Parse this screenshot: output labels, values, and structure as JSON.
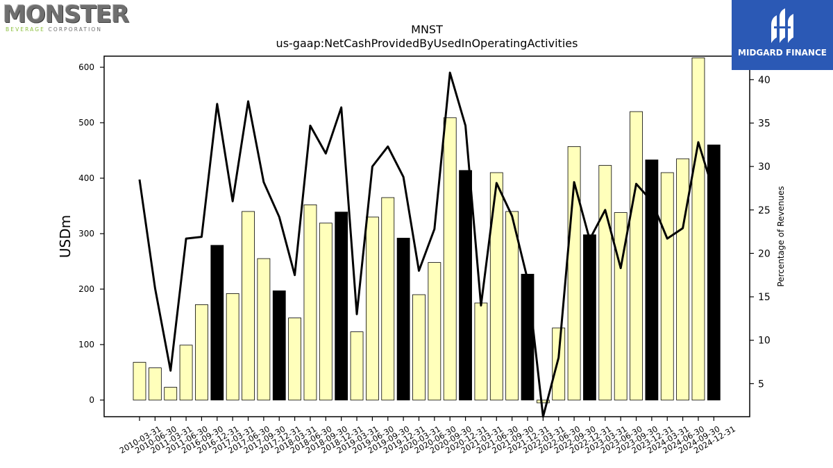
{
  "logo_left": {
    "name": "MONSTER",
    "tagline_a": "BEVERAGE",
    "tagline_b": "CORPORATION"
  },
  "logo_right": {
    "name": "MIDGARD FINANCE",
    "bg_color": "#2b59b5"
  },
  "chart_data": {
    "type": "bar",
    "title": "MNST",
    "subtitle": "us-gaap:NetCashProvidedByUsedInOperatingActivities",
    "ylabel": "USDm",
    "y2label": "Percentage of Revenues",
    "ylim": [
      -30,
      620
    ],
    "y2lim": [
      1.2,
      42.7
    ],
    "yticks": [
      0,
      100,
      200,
      300,
      400,
      500,
      600
    ],
    "y2ticks": [
      5,
      10,
      15,
      20,
      25,
      30,
      35,
      40
    ],
    "grid": false,
    "categories": [
      "2010-03-31",
      "2010-06-30",
      "2011-03-31",
      "2011-06-30",
      "2016-09-30",
      "2016-12-31",
      "2017-03-31",
      "2017-06-30",
      "2017-09-30",
      "2017-12-31",
      "2018-03-31",
      "2018-06-30",
      "2018-09-30",
      "2018-12-31",
      "2019-03-31",
      "2019-06-30",
      "2019-09-30",
      "2019-12-31",
      "2020-03-31",
      "2020-06-30",
      "2020-09-30",
      "2020-12-31",
      "2021-03-31",
      "2021-06-30",
      "2021-09-30",
      "2021-12-31",
      "2022-03-31",
      "2022-06-30",
      "2022-09-30",
      "2022-12-31",
      "2023-03-31",
      "2023-06-30",
      "2023-09-30",
      "2023-12-31",
      "2024-03-31",
      "2024-06-30",
      "2024-09-30",
      "2024-12-31"
    ],
    "values": [
      68,
      58,
      23,
      99,
      172,
      279,
      192,
      340,
      255,
      197,
      148,
      352,
      319,
      339,
      123,
      330,
      365,
      292,
      190,
      248,
      509,
      414,
      175,
      410,
      340,
      227,
      -5,
      130,
      457,
      298,
      423,
      338,
      520,
      433,
      410,
      435,
      617,
      460
    ],
    "highlight": [
      false,
      false,
      false,
      false,
      false,
      true,
      false,
      false,
      false,
      true,
      false,
      false,
      false,
      true,
      false,
      false,
      false,
      true,
      false,
      false,
      false,
      true,
      false,
      false,
      false,
      true,
      false,
      false,
      false,
      true,
      false,
      false,
      false,
      true,
      false,
      false,
      false,
      true
    ],
    "line_series": {
      "name": "Percentage of Revenues",
      "values": [
        28.5,
        16.0,
        6.5,
        21.7,
        21.9,
        37.2,
        26.0,
        37.5,
        28.2,
        24.2,
        17.5,
        34.7,
        31.5,
        36.8,
        13.0,
        30.0,
        32.3,
        28.8,
        18.0,
        22.8,
        40.8,
        34.7,
        14.0,
        28.1,
        24.3,
        17.0,
        1.2,
        8.0,
        28.2,
        21.6,
        25.0,
        18.3,
        28.0,
        26.0,
        21.7,
        22.9,
        32.8,
        27.0
      ]
    },
    "colors": {
      "bar": "#ffffbb",
      "bar_highlight": "#000000",
      "bar_edge": "#000000",
      "line": "#000000"
    }
  }
}
